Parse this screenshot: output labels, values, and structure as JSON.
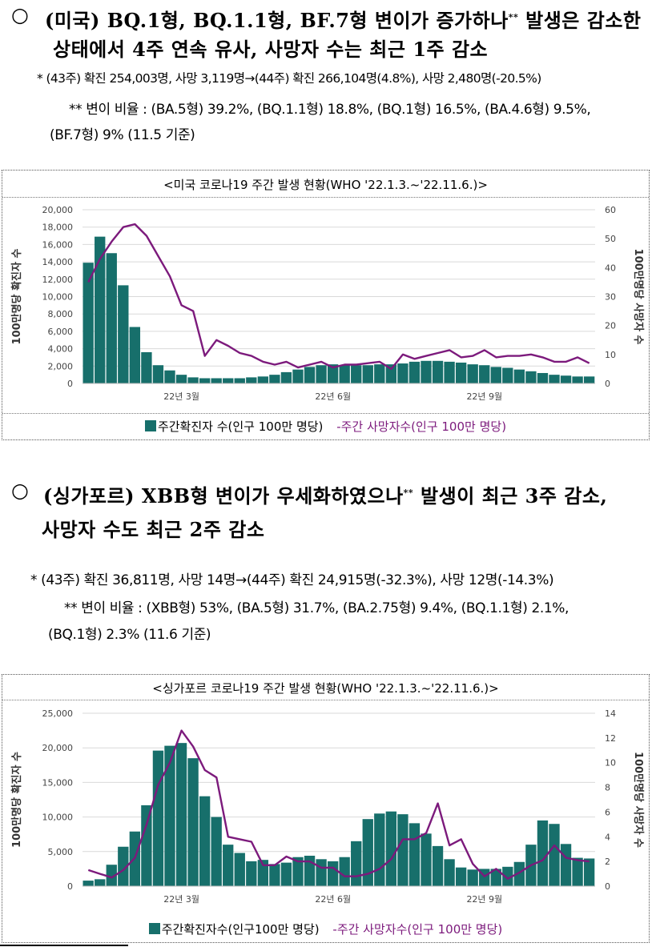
{
  "section1": {
    "bullet": "○",
    "heading_line1_a": "(미국) BQ.1형, BQ.1.1형, BF.7형 변이가 증가하나",
    "heading_sup": "**",
    "heading_line1_b": " 발생은 감소한",
    "heading_line2": "상태에서 4주 연속 유사, 사망자 수는 최근 1주 감소",
    "note1": "* (43주) 확진 254,003명, 사망 3,119명→(44주) 확진 266,104명(4.8%), 사망 2,480명(-20.5%)",
    "note2_line1": "** 변이 비율 : (BA.5형) 39.2%, (BQ.1.1형) 18.8%, (BQ.1형) 16.5%, (BA.4.6형) 9.5%,",
    "note2_line2": "(BF.7형) 9% (11.5 기준)"
  },
  "section2": {
    "bullet": "○",
    "heading_line1_a": "(싱가포르) XBB형 변이가 우세화하였으나",
    "heading_sup": "**",
    "heading_line1_b": " 발생이 최근 3주 감소,",
    "heading_line2": "사망자 수도 최근 2주 감소",
    "note1": "* (43주) 확진 36,811명, 사망 14명→(44주) 확진 24,915명(-32.3%), 사망 12명(-14.3%)",
    "note2_line1": "** 변이 비율 : (XBB형) 53%, (BA.5형) 31.7%, (BA.2.75형) 9.4%, (BQ.1.1형) 2.1%,",
    "note2_line2": "(BQ.1형) 2.3% (11.6 기준)"
  },
  "colors": {
    "bar": "#176f6b",
    "line": "#7c1a7c",
    "grid": "#d9d9d9"
  },
  "chart_data": [
    {
      "type": "bar",
      "title": "<미국 코로나19 주간 발생 현황(WHO '22.1.3.~'22.11.6.)>",
      "ylabel": "100만명당 확진자 수",
      "y2label": "100만명당 사망자 수",
      "ylim": [
        0,
        20000
      ],
      "y2lim": [
        0,
        60
      ],
      "yticks": [
        "20,000",
        "18,000",
        "16,000",
        "14,000",
        "12,000",
        "10,000",
        "8,000",
        "6,000",
        "4,000",
        "2,000",
        "0"
      ],
      "y2ticks": [
        "60",
        "50",
        "40",
        "30",
        "20",
        "10",
        "0"
      ],
      "xticks": [
        {
          "label": "22년 3월",
          "week": 8
        },
        {
          "label": "22년 6월",
          "week": 21
        },
        {
          "label": "22년 9월",
          "week": 34
        }
      ],
      "weeks": 44,
      "series": [
        {
          "name": "주간 확진자 수(인구 100만 명당)",
          "kind": "bar",
          "values": [
            13900,
            16900,
            15000,
            11300,
            6500,
            3600,
            2100,
            1500,
            1000,
            700,
            600,
            600,
            600,
            600,
            700,
            800,
            1000,
            1300,
            1600,
            1900,
            2100,
            2200,
            2100,
            2100,
            2100,
            2200,
            2200,
            2300,
            2500,
            2600,
            2600,
            2500,
            2400,
            2200,
            2100,
            1900,
            1800,
            1600,
            1400,
            1200,
            1000,
            900,
            800,
            800
          ]
        },
        {
          "name": "주간 사망자수(인구 100만 명당)",
          "kind": "line",
          "values": [
            35,
            43,
            49,
            54,
            55,
            51,
            44,
            37,
            27,
            25,
            9.5,
            15,
            13,
            10.5,
            9.5,
            7.5,
            6.5,
            7.5,
            5.5,
            6.5,
            7.5,
            5.5,
            6.5,
            6.5,
            7,
            7.5,
            5,
            10,
            8.5,
            9.5,
            10.5,
            11.5,
            9,
            9.5,
            11.5,
            9,
            9.5,
            9.5,
            10,
            9,
            7.5,
            7.5,
            9,
            7
          ]
        }
      ],
      "legend": {
        "bar_label": "주간확진자 수(인구 100만 명당)",
        "line_label": "-주간 사망자수(인구 100만 명당)"
      }
    },
    {
      "type": "bar",
      "title": "<싱가포르 코로나19 주간 발생 현황(WHO '22.1.3.~'22.11.6.)>",
      "ylabel": "100만명당 확진자 수",
      "y2label": "100만명당 사망자 수",
      "ylim": [
        0,
        25000
      ],
      "y2lim": [
        0,
        14
      ],
      "yticks": [
        "25,000",
        "20,000",
        "15,000",
        "10,000",
        "5,000",
        "0"
      ],
      "y2ticks": [
        "14",
        "12",
        "10",
        "8",
        "6",
        "4",
        "2",
        "0"
      ],
      "xticks": [
        {
          "label": "22년 3월",
          "week": 8
        },
        {
          "label": "22년 6월",
          "week": 21
        },
        {
          "label": "22년 9월",
          "week": 34
        }
      ],
      "weeks": 44,
      "series": [
        {
          "name": "주간 확진자 수(인구 100만 명당)",
          "kind": "bar",
          "values": [
            800,
            1000,
            3100,
            5700,
            7900,
            11700,
            19600,
            20300,
            20700,
            18500,
            13000,
            10000,
            6000,
            4800,
            3600,
            3800,
            3200,
            3400,
            4200,
            4400,
            3900,
            3600,
            4200,
            6500,
            9700,
            10500,
            10800,
            10400,
            9100,
            7600,
            5800,
            3900,
            2700,
            2400,
            2500,
            2500,
            2800,
            3500,
            6000,
            9500,
            9000,
            6100,
            4100,
            4000
          ]
        },
        {
          "name": "주간 사망자수(인구 100만 명당)",
          "kind": "line",
          "values": [
            1.3,
            1.0,
            0.7,
            1.3,
            2.3,
            5.0,
            8.2,
            10.0,
            12.6,
            11.3,
            9.4,
            8.8,
            4.0,
            3.8,
            3.6,
            1.7,
            1.7,
            2.4,
            2.0,
            2.0,
            1.5,
            1.5,
            0.8,
            0.8,
            1.0,
            1.4,
            2.2,
            3.8,
            3.8,
            4.3,
            6.7,
            3.3,
            3.8,
            1.8,
            0.8,
            1.4,
            0.6,
            1.1,
            1.7,
            2.1,
            3.3,
            2.3,
            2.1,
            2.0
          ]
        }
      ],
      "legend": {
        "bar_label": "주간확진자수(인구100만 명당)",
        "line_label": "-주간 사망자수(인구 100만 명당)"
      }
    }
  ]
}
